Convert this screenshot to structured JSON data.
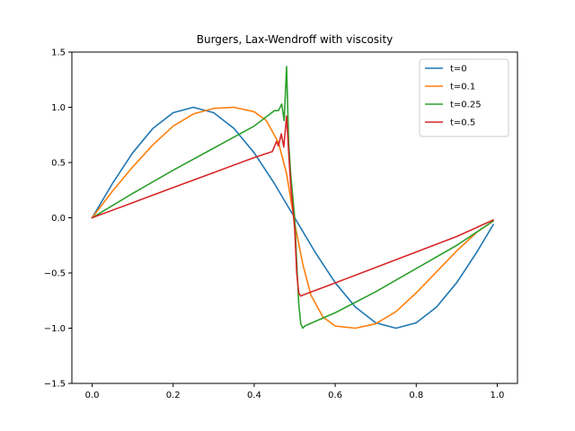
{
  "chart_data": {
    "type": "line",
    "title": "Burgers, Lax-Wendroff with viscosity",
    "xlabel": "",
    "ylabel": "",
    "xlim": [
      -0.05,
      1.05
    ],
    "ylim": [
      -1.5,
      1.5
    ],
    "xticks": [
      0.0,
      0.2,
      0.4,
      0.6,
      0.8,
      1.0
    ],
    "xtick_labels": [
      "0.0",
      "0.2",
      "0.4",
      "0.6",
      "0.8",
      "1.0"
    ],
    "yticks": [
      -1.5,
      -1.0,
      -0.5,
      0.0,
      0.5,
      1.0,
      1.5
    ],
    "ytick_labels": [
      "−1.5",
      "−1.0",
      "−0.5",
      "0.0",
      "0.5",
      "1.0",
      "1.5"
    ],
    "grid": false,
    "legend_position": "top-right",
    "series": [
      {
        "name": "t=0",
        "color": "#1f77b4",
        "x": [
          0.0,
          0.05,
          0.1,
          0.15,
          0.2,
          0.25,
          0.3,
          0.35,
          0.4,
          0.45,
          0.5,
          0.55,
          0.6,
          0.65,
          0.7,
          0.75,
          0.8,
          0.85,
          0.9,
          0.95,
          0.99
        ],
        "y": [
          0.0,
          0.309,
          0.588,
          0.809,
          0.951,
          1.0,
          0.951,
          0.809,
          0.588,
          0.309,
          0.0,
          -0.309,
          -0.588,
          -0.809,
          -0.951,
          -1.0,
          -0.951,
          -0.809,
          -0.588,
          -0.309,
          -0.063
        ]
      },
      {
        "name": "t=0.1",
        "color": "#ff7f0e",
        "x": [
          0.0,
          0.05,
          0.1,
          0.15,
          0.2,
          0.25,
          0.3,
          0.35,
          0.4,
          0.43,
          0.46,
          0.48,
          0.5,
          0.52,
          0.54,
          0.57,
          0.6,
          0.65,
          0.7,
          0.75,
          0.8,
          0.85,
          0.9,
          0.95,
          0.99
        ],
        "y": [
          0.0,
          0.24,
          0.46,
          0.66,
          0.83,
          0.94,
          0.99,
          1.0,
          0.96,
          0.88,
          0.68,
          0.4,
          -0.05,
          -0.42,
          -0.7,
          -0.9,
          -0.98,
          -1.0,
          -0.96,
          -0.85,
          -0.68,
          -0.49,
          -0.3,
          -0.13,
          -0.03
        ]
      },
      {
        "name": "t=0.25",
        "color": "#2ca02c",
        "x": [
          0.0,
          0.1,
          0.2,
          0.3,
          0.4,
          0.45,
          0.46,
          0.468,
          0.474,
          0.48,
          0.485,
          0.49,
          0.5,
          0.505,
          0.51,
          0.515,
          0.52,
          0.525,
          0.6,
          0.7,
          0.8,
          0.9,
          0.99
        ],
        "y": [
          0.0,
          0.22,
          0.43,
          0.63,
          0.83,
          0.97,
          0.97,
          1.03,
          0.88,
          1.37,
          0.7,
          0.4,
          0.0,
          -0.4,
          -0.78,
          -0.96,
          -1.0,
          -0.98,
          -0.86,
          -0.67,
          -0.46,
          -0.25,
          -0.03
        ]
      },
      {
        "name": "t=0.5",
        "color": "#d62728",
        "x": [
          0.0,
          0.1,
          0.2,
          0.3,
          0.4,
          0.445,
          0.455,
          0.46,
          0.467,
          0.473,
          0.48,
          0.485,
          0.49,
          0.5,
          0.505,
          0.51,
          0.515,
          0.52,
          0.6,
          0.7,
          0.8,
          0.9,
          0.99
        ],
        "y": [
          0.0,
          0.136,
          0.273,
          0.409,
          0.545,
          0.6,
          0.69,
          0.65,
          0.76,
          0.64,
          0.92,
          0.6,
          0.3,
          -0.1,
          -0.5,
          -0.68,
          -0.71,
          -0.7,
          -0.59,
          -0.45,
          -0.31,
          -0.17,
          -0.02
        ]
      }
    ]
  }
}
